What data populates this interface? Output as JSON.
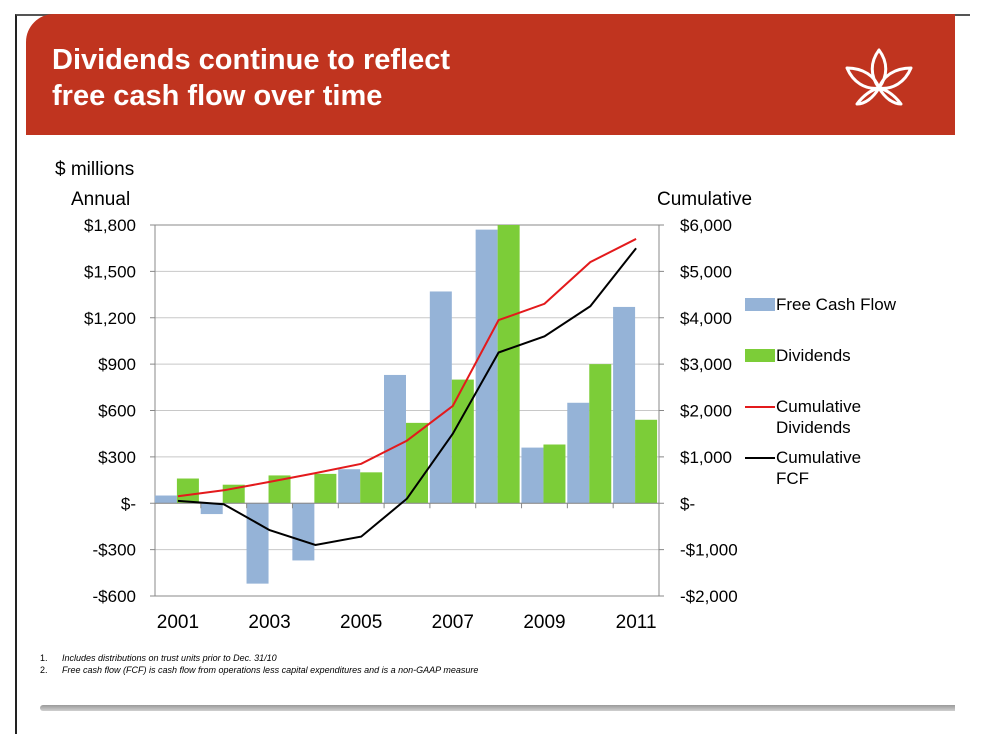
{
  "title": "Dividends continue to reflect\nfree cash flow over time",
  "units_label": "$ millions",
  "left_axis_title": "Annual",
  "right_axis_title": "Cumulative",
  "legend": {
    "fcf": "Free Cash Flow",
    "dividends": "Dividends",
    "cum_dividends": "Cumulative\nDividends",
    "cum_fcf": "Cumulative\nFCF"
  },
  "footnotes": [
    {
      "num": "1.",
      "text": "Includes distributions on trust units prior to Dec. 31/10"
    },
    {
      "num": "2.",
      "text": "Free cash flow (FCF) is cash flow from operations less capital expenditures and is a non-GAAP measure"
    }
  ],
  "colors": {
    "banner": "#c0341f",
    "fcf": "#95b3d7",
    "dividends": "#7ccd38",
    "cum_dividends": "#e31a1c",
    "cum_fcf": "#000000"
  },
  "chart_data": {
    "type": "bar",
    "categories": [
      "2001",
      "2002",
      "2003",
      "2004",
      "2005",
      "2006",
      "2007",
      "2008",
      "2009",
      "2010",
      "2011"
    ],
    "x_tick_labels": [
      "2001",
      "",
      "2003",
      "",
      "2005",
      "",
      "2007",
      "",
      "2009",
      "",
      "2011"
    ],
    "y_left": {
      "range": [
        -600,
        1800
      ],
      "ticks": [
        1800,
        1500,
        1200,
        900,
        600,
        300,
        0,
        -300,
        -600
      ],
      "tick_labels": [
        "$1,800",
        "$1,500",
        "$1,200",
        "$900",
        "$600",
        "$300",
        "$-",
        "-$300",
        "-$600"
      ]
    },
    "y_right": {
      "range": [
        -2000,
        6000
      ],
      "ticks": [
        6000,
        5000,
        4000,
        3000,
        2000,
        1000,
        0,
        -1000,
        -2000
      ],
      "tick_labels": [
        "$6,000",
        "$5,000",
        "$4,000",
        "$3,000",
        "$2,000",
        "$1,000",
        "$-",
        "-$1,000",
        "-$2,000"
      ]
    },
    "grid": true,
    "legend_position": "right",
    "series": [
      {
        "name": "Free Cash Flow",
        "kind": "bar",
        "axis": "left",
        "values": [
          50,
          -70,
          -520,
          -370,
          220,
          830,
          1370,
          1770,
          360,
          650,
          1270
        ]
      },
      {
        "name": "Dividends",
        "kind": "bar",
        "axis": "left",
        "values": [
          160,
          120,
          180,
          190,
          200,
          520,
          800,
          1800,
          380,
          900,
          540
        ]
      },
      {
        "name": "Cumulative Dividends",
        "kind": "line",
        "axis": "right",
        "values": [
          150,
          280,
          460,
          650,
          850,
          1350,
          2100,
          3950,
          4300,
          5200,
          5700
        ]
      },
      {
        "name": "Cumulative FCF",
        "kind": "line",
        "axis": "right",
        "values": [
          50,
          -20,
          -580,
          -900,
          -720,
          100,
          1500,
          3250,
          3600,
          4250,
          5500
        ]
      }
    ]
  }
}
